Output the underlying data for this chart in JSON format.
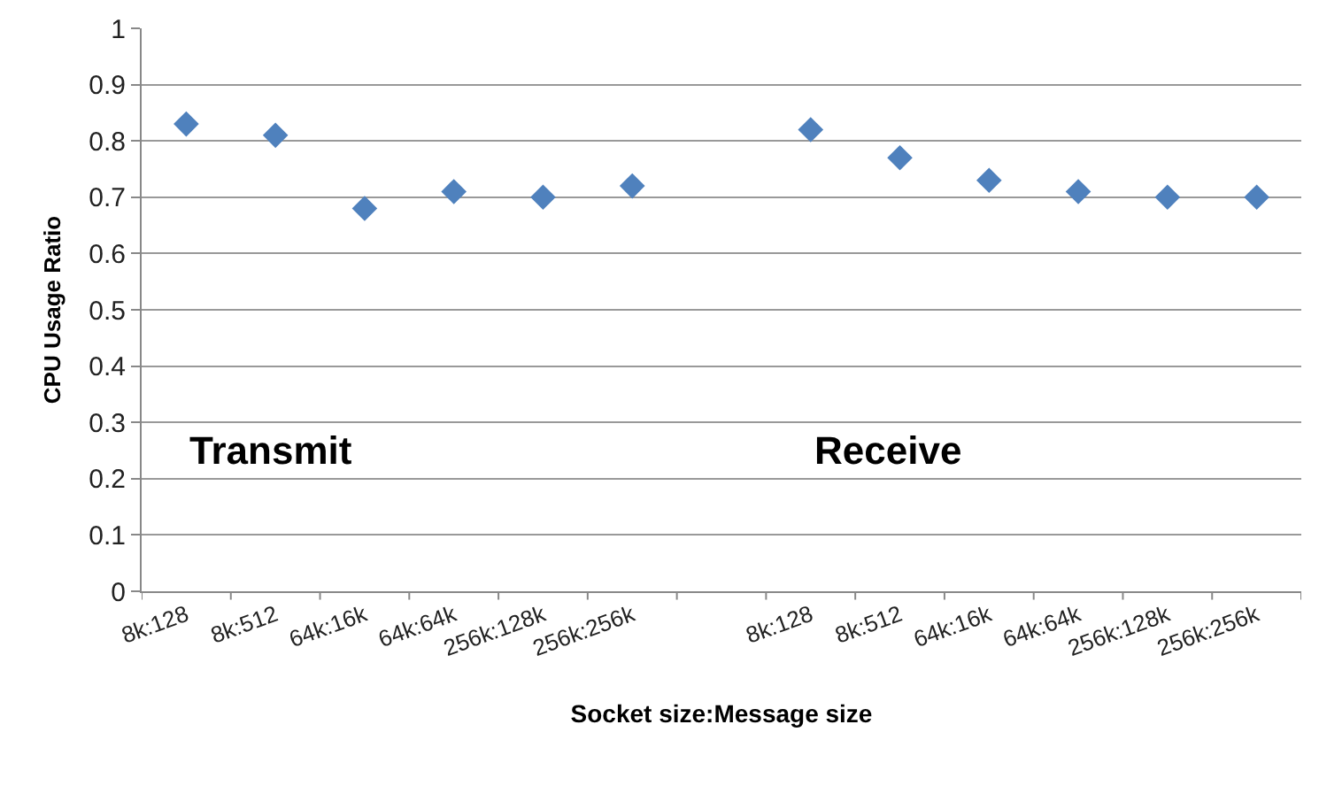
{
  "chart_data": {
    "type": "scatter",
    "categories": [
      "8k:128",
      "8k:512",
      "64k:16k",
      "64k:64k",
      "256k:128k",
      "256k:256k",
      null,
      "8k:128",
      "8k:512",
      "64k:16k",
      "64k:64k",
      "256k:128k",
      "256k:256k"
    ],
    "values": [
      0.83,
      0.81,
      0.68,
      0.71,
      0.7,
      0.72,
      null,
      0.82,
      0.77,
      0.73,
      0.71,
      0.7,
      0.7
    ],
    "color": "#4f81bd",
    "marker": "diamond",
    "xlabel": "Socket size:Message size",
    "ylabel": "CPU Usage Ratio",
    "ylim": [
      0,
      1
    ],
    "yticks": [
      0,
      0.1,
      0.2,
      0.3,
      0.4,
      0.5,
      0.6,
      0.7,
      0.8,
      0.9,
      1
    ],
    "grid": "y",
    "annotations": [
      "Transmit",
      "Receive"
    ]
  }
}
